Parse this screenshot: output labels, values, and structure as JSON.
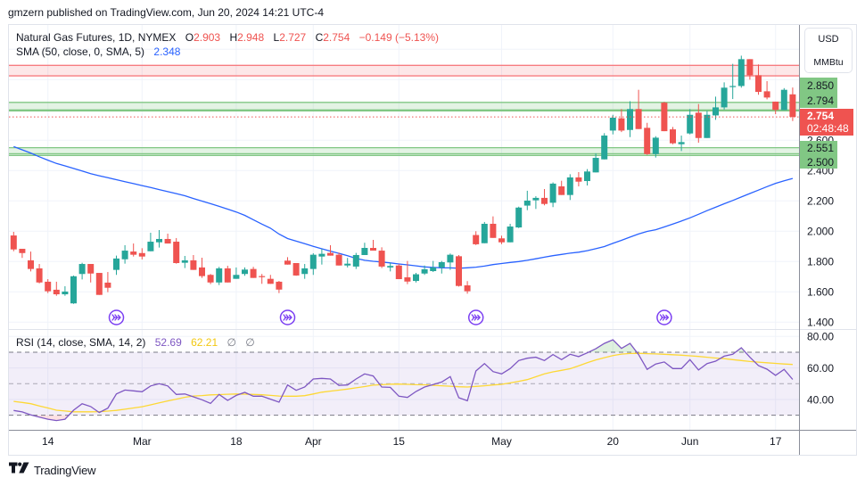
{
  "header": {
    "attribution": "gmzern published on TradingView.com, Jun 20, 2024 14:21 UTC-4"
  },
  "legend": {
    "symbol": "Natural Gas Futures, 1D, NYMEX",
    "open_label": "O",
    "open": "2.903",
    "high_label": "H",
    "high": "2.948",
    "low_label": "L",
    "low": "2.727",
    "close_label": "C",
    "close": "2.754",
    "change": "−0.149 (−5.13%)",
    "sma_title": "SMA (50, close, 0, SMA, 5)",
    "sma_value": "2.348"
  },
  "rsi_legend": {
    "title": "RSI (14, close, SMA, 14, 2)",
    "rsi_value": "52.69",
    "ma_value": "62.21",
    "extra_1": "∅",
    "extra_2": "∅"
  },
  "price_axis": {
    "currency": "USD",
    "unit": "MMBtu",
    "zone_top_labels": [
      "2.850",
      "2.794"
    ],
    "last_price": "2.754",
    "countdown": "02:48:48",
    "zone_bottom_labels": [
      "2.551",
      "2.500"
    ]
  },
  "footer": {
    "brand": "TradingView"
  },
  "colors": {
    "up": "#26a69a",
    "down": "#ef5350",
    "sma": "#2962ff",
    "rsi": "#7e57c2",
    "rsi_ma": "#fdd835",
    "zone_green": "#81c784",
    "zone_red": "#f77c80",
    "marker": "#7b3ff2"
  },
  "chart_data": {
    "type": "candlestick",
    "title": "Natural Gas Futures, 1D, NYMEX",
    "ylabel": "USD / MMBtu",
    "ylim": [
      1.35,
      3.2
    ],
    "grid": true,
    "price_ticks": [
      1.4,
      1.6,
      1.8,
      2.0,
      2.2,
      2.4,
      2.6
    ],
    "price_tick_labels": [
      "1.400",
      "1.600",
      "1.800",
      "2.000",
      "2.200",
      "2.400",
      "2.600"
    ],
    "x_ticks": [
      {
        "label": "14",
        "index": 4
      },
      {
        "label": "Mar",
        "index": 15
      },
      {
        "label": "18",
        "index": 26
      },
      {
        "label": "Apr",
        "index": 35
      },
      {
        "label": "15",
        "index": 45
      },
      {
        "label": "May",
        "index": 57
      },
      {
        "label": "20",
        "index": 70
      },
      {
        "label": "Jun",
        "index": 79
      },
      {
        "label": "17",
        "index": 89
      }
    ],
    "candle_fields": [
      "date",
      "open",
      "high",
      "low",
      "close"
    ],
    "candles": [
      [
        "Feb 8",
        1.972,
        1.996,
        1.868,
        1.88
      ],
      [
        "Feb 9",
        1.884,
        1.884,
        1.824,
        1.856
      ],
      [
        "Feb 12",
        1.808,
        1.866,
        1.735,
        1.751
      ],
      [
        "Feb 13",
        1.755,
        1.784,
        1.656,
        1.662
      ],
      [
        "Feb 14",
        1.667,
        1.684,
        1.592,
        1.604
      ],
      [
        "Feb 15",
        1.614,
        1.667,
        1.574,
        1.584
      ],
      [
        "Feb 16",
        1.584,
        1.637,
        1.574,
        1.602
      ],
      [
        "Feb 20",
        1.524,
        1.708,
        1.521,
        1.703
      ],
      [
        "Feb 21",
        1.718,
        1.792,
        1.682,
        1.784
      ],
      [
        "Feb 22",
        1.784,
        1.784,
        1.662,
        1.721
      ],
      [
        "Feb 23",
        1.725,
        1.725,
        1.58,
        1.58
      ],
      [
        "Feb 26",
        1.661,
        1.731,
        1.598,
        1.627
      ],
      [
        "Feb 27",
        1.745,
        1.839,
        1.712,
        1.82
      ],
      [
        "Feb 28",
        1.815,
        1.908,
        1.786,
        1.872
      ],
      [
        "Feb 29",
        1.866,
        1.919,
        1.833,
        1.845
      ],
      [
        "Mar 1",
        1.856,
        1.888,
        1.814,
        1.833
      ],
      [
        "Mar 4",
        1.868,
        1.99,
        1.868,
        1.931
      ],
      [
        "Mar 5",
        1.927,
        2.008,
        1.892,
        1.949
      ],
      [
        "Mar 6",
        1.949,
        1.984,
        1.919,
        1.919
      ],
      [
        "Mar 7",
        1.931,
        1.955,
        1.786,
        1.79
      ],
      [
        "Mar 8",
        1.792,
        1.837,
        1.757,
        1.808
      ],
      [
        "Mar 11",
        1.808,
        1.843,
        1.745,
        1.745
      ],
      [
        "Mar 12",
        1.761,
        1.825,
        1.692,
        1.704
      ],
      [
        "Mar 13",
        1.712,
        1.718,
        1.651,
        1.662
      ],
      [
        "Mar 14",
        1.662,
        1.765,
        1.645,
        1.755
      ],
      [
        "Mar 15",
        1.755,
        1.772,
        1.662,
        1.662
      ],
      [
        "Mar 18",
        1.686,
        1.761,
        1.686,
        1.712
      ],
      [
        "Mar 19",
        1.718,
        1.761,
        1.706,
        1.747
      ],
      [
        "Mar 20",
        1.751,
        1.765,
        1.692,
        1.692
      ],
      [
        "Mar 21",
        1.704,
        1.718,
        1.653,
        1.7
      ],
      [
        "Mar 22",
        1.686,
        1.712,
        1.653,
        1.653
      ],
      [
        "Mar 25",
        1.667,
        1.672,
        1.592,
        1.615
      ],
      [
        "Mar 26",
        1.806,
        1.829,
        1.78,
        1.78
      ],
      [
        "Mar 27",
        1.79,
        1.79,
        1.706,
        1.708
      ],
      [
        "Mar 28",
        1.718,
        1.784,
        1.686,
        1.755
      ],
      [
        "Apr 1",
        1.751,
        1.855,
        1.712,
        1.845
      ],
      [
        "Apr 2",
        1.833,
        1.884,
        1.78,
        1.851
      ],
      [
        "Apr 3",
        1.857,
        1.908,
        1.839,
        1.839
      ],
      [
        "Apr 4",
        1.845,
        1.859,
        1.774,
        1.774
      ],
      [
        "Apr 5",
        1.774,
        1.824,
        1.761,
        1.786
      ],
      [
        "Apr 8",
        1.767,
        1.857,
        1.751,
        1.843
      ],
      [
        "Apr 9",
        1.843,
        1.924,
        1.843,
        1.89
      ],
      [
        "Apr 10",
        1.89,
        1.943,
        1.872,
        1.872
      ],
      [
        "Apr 11",
        1.872,
        1.894,
        1.757,
        1.767
      ],
      [
        "Apr 12",
        1.761,
        1.792,
        1.735,
        1.771
      ],
      [
        "Apr 15",
        1.774,
        1.784,
        1.684,
        1.684
      ],
      [
        "Apr 16",
        1.696,
        1.804,
        1.651,
        1.668
      ],
      [
        "Apr 17",
        1.672,
        1.725,
        1.662,
        1.716
      ],
      [
        "Apr 18",
        1.721,
        1.774,
        1.712,
        1.749
      ],
      [
        "Apr 19",
        1.737,
        1.804,
        1.731,
        1.761
      ],
      [
        "Apr 22",
        1.761,
        1.804,
        1.721,
        1.796
      ],
      [
        "Apr 23",
        1.794,
        1.853,
        1.745,
        1.845
      ],
      [
        "Apr 24",
        1.835,
        1.843,
        1.635,
        1.639
      ],
      [
        "Apr 25",
        1.643,
        1.671,
        1.588,
        1.604
      ],
      [
        "Apr 26",
        1.975,
        2.0,
        1.909,
        1.914
      ],
      [
        "Apr 29",
        1.921,
        2.061,
        1.921,
        2.049
      ],
      [
        "Apr 30",
        2.049,
        2.098,
        1.956,
        1.956
      ],
      [
        "May 1",
        1.953,
        1.971,
        1.915,
        1.927
      ],
      [
        "May 2",
        1.927,
        2.049,
        1.927,
        2.031
      ],
      [
        "May 3",
        2.025,
        2.162,
        2.021,
        2.156
      ],
      [
        "May 6",
        2.169,
        2.267,
        2.139,
        2.202
      ],
      [
        "May 7",
        2.204,
        2.231,
        2.147,
        2.22
      ],
      [
        "May 8",
        2.22,
        2.278,
        2.171,
        2.18
      ],
      [
        "May 9",
        2.188,
        2.322,
        2.159,
        2.314
      ],
      [
        "May 10",
        2.296,
        2.333,
        2.239,
        2.239
      ],
      [
        "May 13",
        2.239,
        2.376,
        2.206,
        2.355
      ],
      [
        "May 14",
        2.355,
        2.39,
        2.296,
        2.327
      ],
      [
        "May 15",
        2.331,
        2.41,
        2.302,
        2.394
      ],
      [
        "May 16",
        2.388,
        2.514,
        2.388,
        2.484
      ],
      [
        "May 17",
        2.474,
        2.647,
        2.474,
        2.631
      ],
      [
        "May 20",
        2.664,
        2.768,
        2.639,
        2.749
      ],
      [
        "May 21",
        2.745,
        2.806,
        2.654,
        2.664
      ],
      [
        "May 22",
        2.668,
        2.858,
        2.621,
        2.806
      ],
      [
        "May 23",
        2.806,
        2.933,
        2.674,
        2.674
      ],
      [
        "May 24",
        2.682,
        2.715,
        2.504,
        2.509
      ],
      [
        "May 28",
        2.509,
        2.627,
        2.486,
        2.617
      ],
      [
        "May 29",
        2.848,
        2.854,
        2.66,
        2.66
      ],
      [
        "May 30",
        2.672,
        2.688,
        2.574,
        2.58
      ],
      [
        "May 31",
        2.574,
        2.631,
        2.529,
        2.588
      ],
      [
        "Jun 3",
        2.645,
        2.806,
        2.639,
        2.768
      ],
      [
        "Jun 4",
        2.782,
        2.839,
        2.584,
        2.615
      ],
      [
        "Jun 5",
        2.615,
        2.794,
        2.615,
        2.768
      ],
      [
        "Jun 6",
        2.764,
        2.888,
        2.735,
        2.817
      ],
      [
        "Jun 7",
        2.817,
        2.982,
        2.803,
        2.947
      ],
      [
        "Jun 10",
        2.951,
        3.104,
        2.872,
        2.958
      ],
      [
        "Jun 11",
        2.958,
        3.158,
        2.947,
        3.135
      ],
      [
        "Jun 12",
        3.135,
        3.135,
        3.0,
        3.029
      ],
      [
        "Jun 13",
        3.029,
        3.1,
        2.9,
        2.919
      ],
      [
        "Jun 14",
        2.923,
        2.99,
        2.87,
        2.882
      ],
      [
        "Jun 17",
        2.855,
        2.855,
        2.772,
        2.8
      ],
      [
        "Jun 18",
        2.799,
        2.944,
        2.799,
        2.933
      ],
      [
        "Jun 20",
        2.903,
        2.948,
        2.727,
        2.754
      ]
    ],
    "sma": {
      "name": "SMA (50, close, 0, SMA, 5)",
      "values": [
        2.558,
        2.537,
        2.516,
        2.491,
        2.469,
        2.447,
        2.431,
        2.414,
        2.397,
        2.38,
        2.366,
        2.353,
        2.34,
        2.327,
        2.314,
        2.301,
        2.288,
        2.275,
        2.261,
        2.248,
        2.234,
        2.216,
        2.199,
        2.182,
        2.164,
        2.146,
        2.127,
        2.105,
        2.076,
        2.047,
        2.02,
        1.981,
        1.952,
        1.935,
        1.918,
        1.9,
        1.884,
        1.869,
        1.854,
        1.838,
        1.821,
        1.808,
        1.802,
        1.797,
        1.791,
        1.784,
        1.778,
        1.772,
        1.765,
        1.761,
        1.759,
        1.758,
        1.756,
        1.759,
        1.763,
        1.77,
        1.78,
        1.787,
        1.794,
        1.8,
        1.808,
        1.818,
        1.829,
        1.839,
        1.847,
        1.855,
        1.862,
        1.872,
        1.885,
        1.899,
        1.92,
        1.94,
        1.961,
        1.982,
        1.999,
        2.01,
        2.028,
        2.047,
        2.067,
        2.088,
        2.112,
        2.136,
        2.158,
        2.181,
        2.203,
        2.226,
        2.249,
        2.271,
        2.294,
        2.316,
        2.333,
        2.348
      ]
    },
    "zones": [
      {
        "kind": "resistance",
        "top": 3.094,
        "bottom": 3.025,
        "extra_line": null
      },
      {
        "kind": "support",
        "top": 2.85,
        "bottom": 2.8,
        "extra_line": 2.794
      },
      {
        "kind": "support",
        "top": 2.551,
        "bottom": 2.511,
        "extra_line": 2.5
      }
    ],
    "last_price": 2.754,
    "roll_markers": [
      12,
      32,
      54,
      76
    ],
    "rsi": {
      "name": "RSI (14, close, SMA, 14, 2)",
      "ylim": [
        20,
        85
      ],
      "y_ticks": [
        80,
        60,
        40
      ],
      "y_tick_labels": [
        "80.00",
        "60.00",
        "40.00"
      ],
      "levels": [
        70,
        50,
        30
      ],
      "values": [
        33.0,
        32.1,
        30.2,
        28.8,
        27.5,
        26.6,
        27.5,
        33.2,
        37.3,
        35.5,
        31.7,
        34.5,
        43.5,
        46.0,
        45.5,
        44.9,
        48.6,
        50.0,
        48.6,
        43.2,
        43.5,
        41.7,
        39.8,
        37.5,
        43.2,
        39.4,
        42.6,
        44.5,
        42.1,
        42.1,
        40.2,
        38.3,
        49.2,
        45.8,
        47.9,
        53.0,
        53.4,
        53.0,
        48.9,
        49.2,
        53.0,
        56.2,
        54.9,
        47.9,
        47.7,
        42.1,
        41.3,
        45.1,
        47.9,
        49.5,
        51.1,
        54.5,
        41.1,
        39.2,
        58.1,
        62.8,
        57.7,
        56.2,
        59.6,
        64.7,
        66.2,
        66.8,
        64.7,
        68.5,
        65.3,
        68.7,
        67.2,
        69.6,
        72.2,
        75.6,
        77.9,
        72.4,
        75.6,
        68.5,
        59.1,
        62.5,
        63.8,
        59.6,
        59.6,
        65.3,
        58.7,
        62.8,
        64.3,
        67.5,
        68.7,
        72.8,
        66.8,
        61.5,
        59.2,
        55.3,
        59.1,
        52.69
      ],
      "ma_values": [
        38.8,
        38.1,
        37.3,
        35.9,
        34.6,
        33.2,
        32.7,
        32.2,
        32.2,
        32.2,
        32.3,
        32.6,
        33.1,
        33.8,
        34.6,
        35.4,
        36.6,
        37.9,
        39.1,
        40.2,
        41.4,
        42.2,
        42.5,
        42.9,
        43.1,
        43.3,
        43.5,
        43.4,
        43.2,
        43.0,
        42.6,
        42.2,
        42.1,
        42.1,
        42.4,
        43.5,
        44.6,
        45.3,
        45.9,
        46.6,
        47.4,
        48.2,
        49.1,
        49.4,
        49.7,
        49.8,
        49.6,
        49.4,
        49.3,
        49.0,
        48.7,
        48.4,
        48.1,
        47.9,
        48.3,
        48.7,
        49.2,
        49.6,
        50.5,
        51.5,
        52.6,
        54.4,
        56.3,
        57.5,
        58.5,
        59.5,
        61.4,
        63.3,
        65.1,
        66.5,
        67.9,
        68.8,
        69.2,
        69.3,
        69.1,
        68.9,
        68.7,
        68.4,
        68.1,
        67.7,
        67.3,
        66.8,
        66.3,
        65.9,
        65.3,
        64.7,
        64.1,
        63.7,
        63.3,
        62.9,
        62.5,
        62.21
      ]
    }
  }
}
